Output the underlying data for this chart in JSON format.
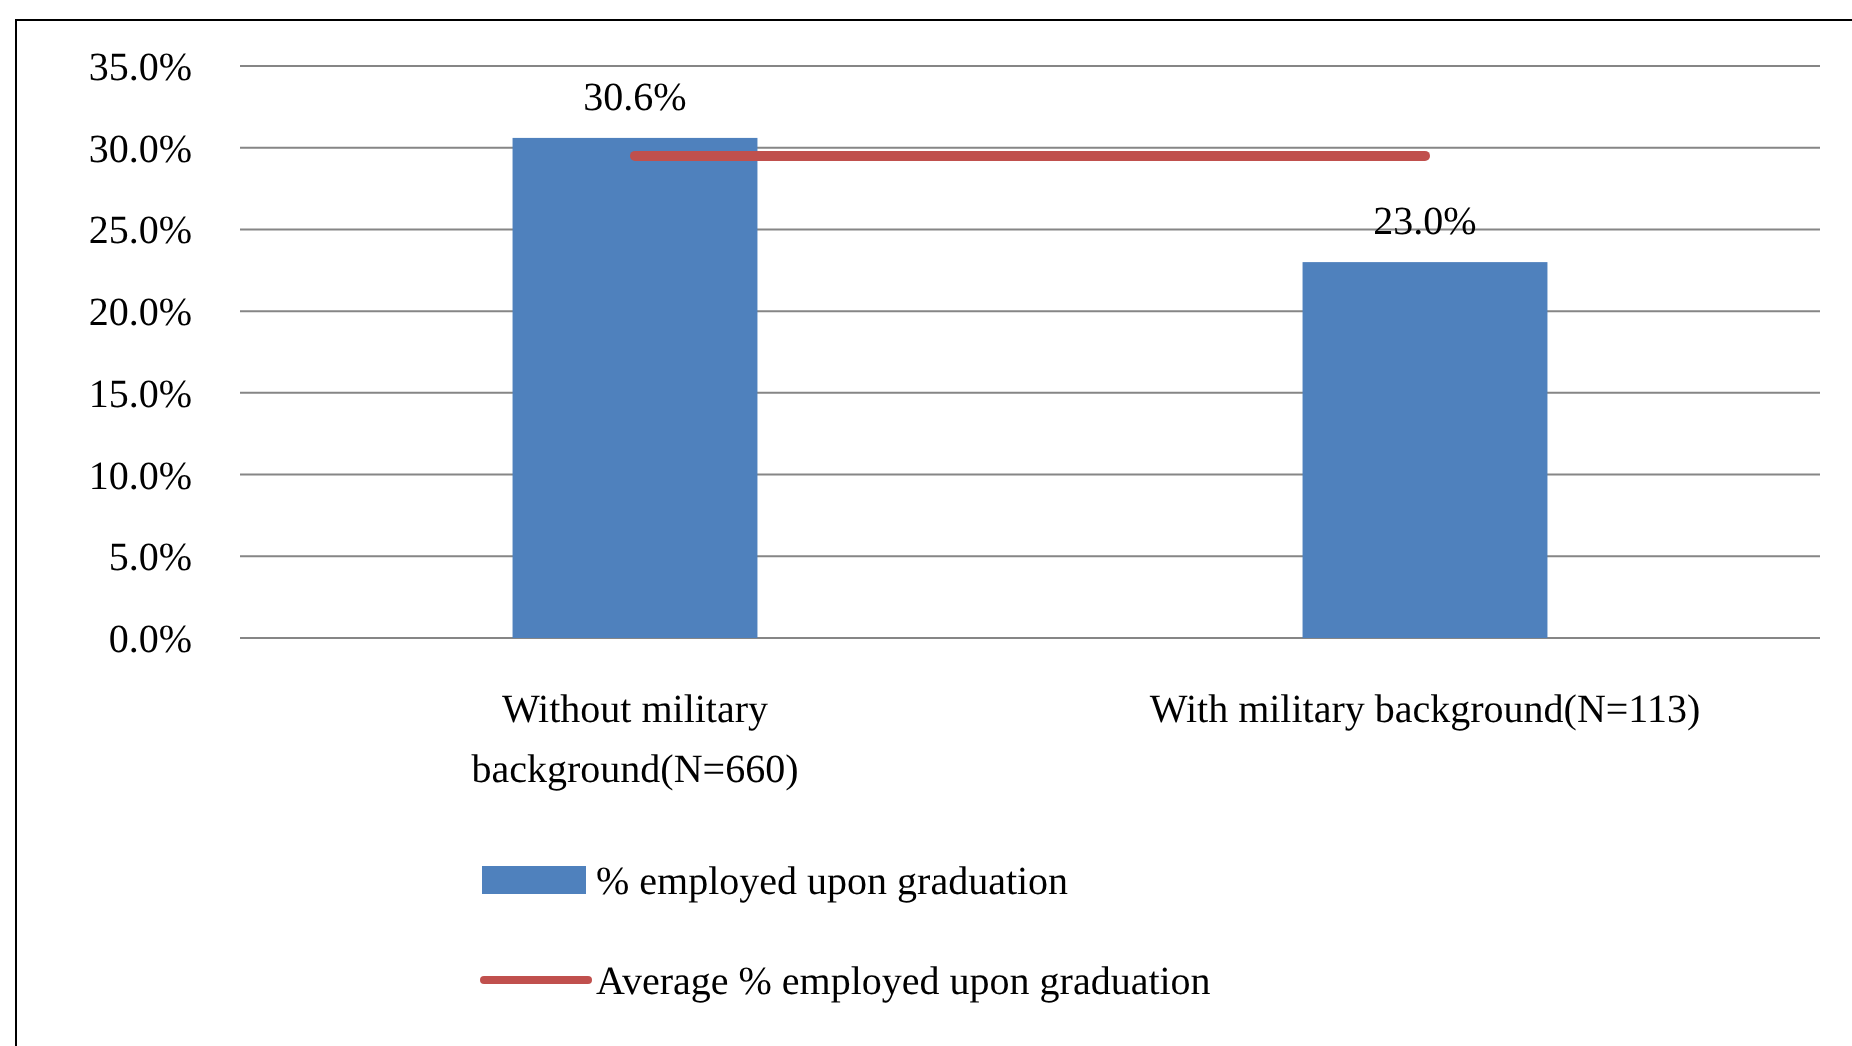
{
  "chart_data": {
    "type": "bar",
    "categories": [
      "Without military background(N=660)",
      "With military background(N=113)"
    ],
    "series": [
      {
        "name": "% employed upon graduation",
        "color": "#4f81bd",
        "values": [
          30.6,
          23.0
        ],
        "value_labels": [
          "30.6%",
          "23.0%"
        ]
      },
      {
        "name": "Average % employed upon graduation",
        "type": "line",
        "color": "#c0504d",
        "values": [
          29.5,
          29.5
        ]
      }
    ],
    "ylim": [
      0,
      35
    ],
    "yticks": [
      {
        "value": 0,
        "label": "0.0%"
      },
      {
        "value": 5,
        "label": "5.0%"
      },
      {
        "value": 10,
        "label": "10.0%"
      },
      {
        "value": 15,
        "label": "15.0%"
      },
      {
        "value": 20,
        "label": "20.0%"
      },
      {
        "value": 25,
        "label": "25.0%"
      },
      {
        "value": 30,
        "label": "30.0%"
      },
      {
        "value": 35,
        "label": "35.0%"
      }
    ],
    "grid": "y",
    "legend": "bottom"
  }
}
